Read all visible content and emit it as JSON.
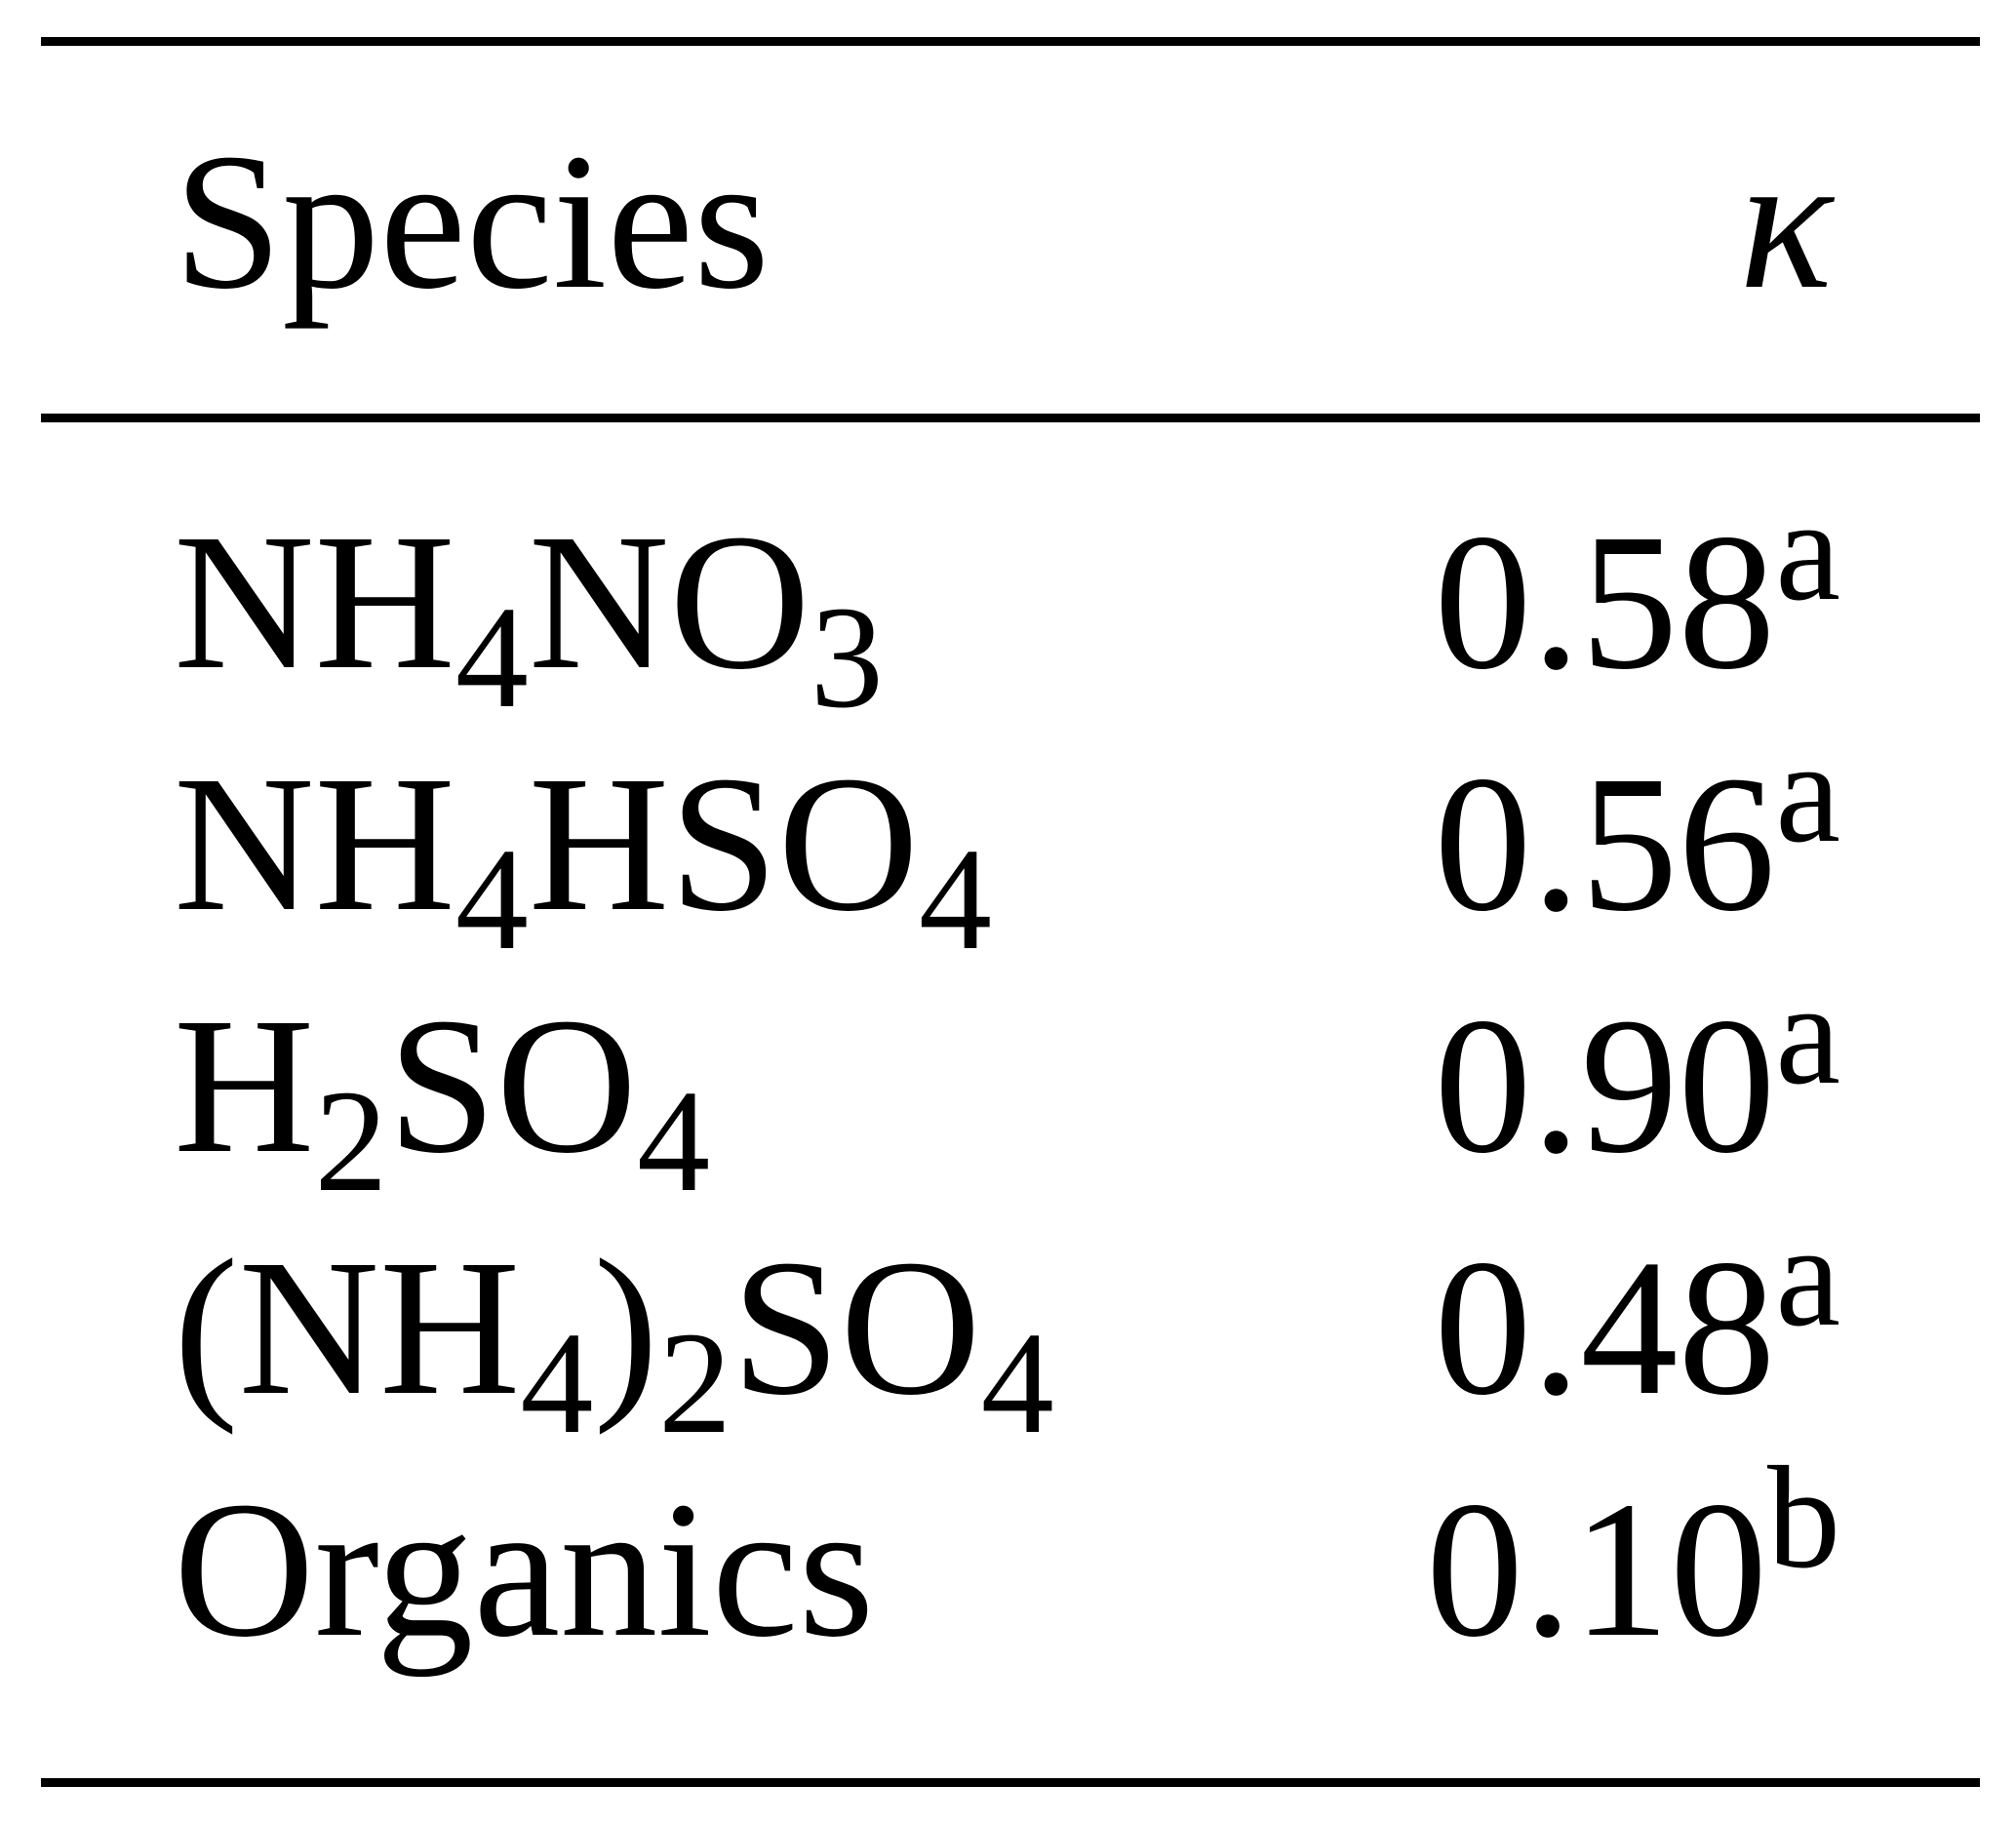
{
  "table": {
    "header": {
      "species": "Species",
      "kappa": "κ"
    },
    "rows": [
      {
        "species": [
          {
            "t": "NH"
          },
          {
            "sub": "4"
          },
          {
            "t": "NO"
          },
          {
            "sub": "3"
          }
        ],
        "value": "0.58",
        "note": "a"
      },
      {
        "species": [
          {
            "t": "NH"
          },
          {
            "sub": "4"
          },
          {
            "t": "HSO"
          },
          {
            "sub": "4"
          }
        ],
        "value": "0.56",
        "note": "a"
      },
      {
        "species": [
          {
            "t": "H"
          },
          {
            "sub": "2"
          },
          {
            "t": "SO"
          },
          {
            "sub": "4"
          }
        ],
        "value": "0.90",
        "note": "a"
      },
      {
        "species": [
          {
            "t": "(NH"
          },
          {
            "sub": "4"
          },
          {
            "t": ")"
          },
          {
            "sub": "2"
          },
          {
            "t": "SO"
          },
          {
            "sub": "4"
          }
        ],
        "value": "0.48",
        "note": "a"
      },
      {
        "species": [
          {
            "t": "Organics"
          }
        ],
        "value": "0.10",
        "note": "b"
      }
    ]
  }
}
